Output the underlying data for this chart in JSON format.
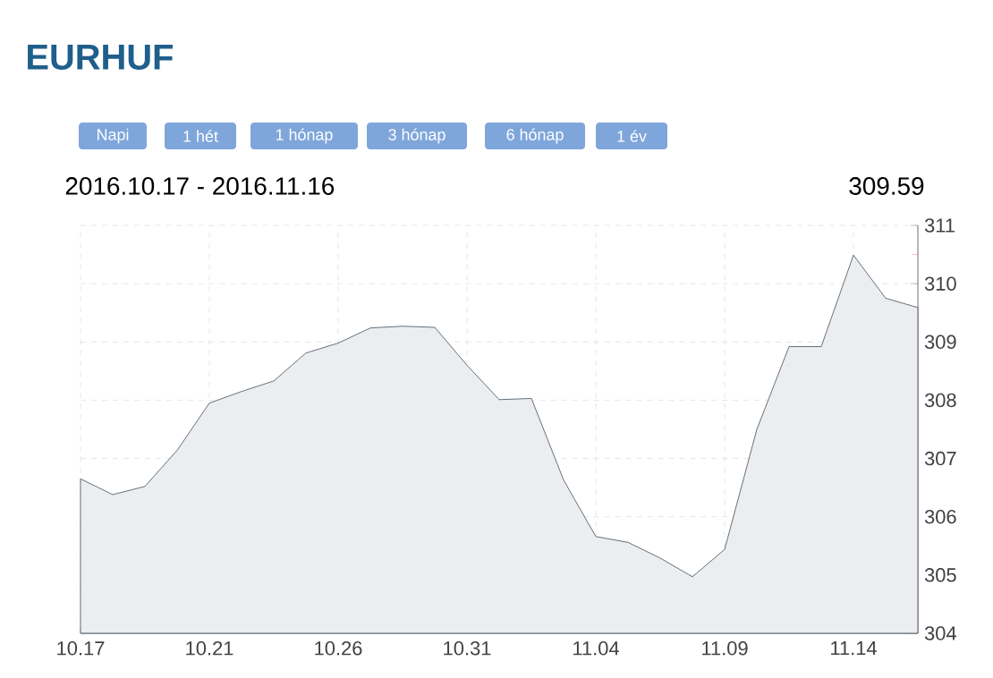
{
  "chart_data": {
    "type": "area",
    "title": "EURHUF",
    "annotations": [
      "Napi",
      "1 hét",
      "1 hónap",
      "3 hónap",
      "6 hónap",
      "1 év",
      "2016.10.17 - 2016.11.16",
      "309.59"
    ],
    "categories": [
      "10.17",
      null,
      null,
      null,
      "10.21",
      null,
      null,
      null,
      "10.26",
      null,
      null,
      null,
      "10.31",
      null,
      null,
      null,
      "11.04",
      null,
      null,
      null,
      "11.09",
      null,
      null,
      null,
      "11.14",
      null,
      null
    ],
    "values": [
      306.65,
      306.38,
      306.52,
      307.14,
      307.95,
      308.15,
      308.33,
      308.81,
      308.98,
      309.24,
      309.27,
      309.25,
      308.6,
      308.01,
      308.03,
      306.63,
      305.66,
      305.56,
      305.29,
      304.97,
      305.44,
      307.5,
      308.92,
      308.92,
      310.49,
      309.75,
      309.59
    ],
    "color": "#3d4f5f",
    "ylim": [
      304,
      311
    ],
    "yticks": [
      304,
      305,
      306,
      307,
      308,
      309,
      310,
      311
    ],
    "grid": true
  }
}
